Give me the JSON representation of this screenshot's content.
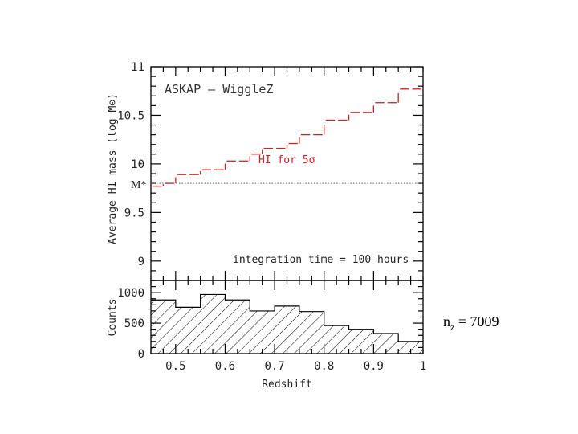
{
  "chart_data": [
    {
      "type": "line",
      "title": "ASKAP – WiggleZ",
      "xlabel": "",
      "ylabel": "Average HI mass  (log M⊙)",
      "xlim": [
        0.45,
        1.0
      ],
      "ylim": [
        8.8,
        11.0
      ],
      "yticks": [
        9,
        9.5,
        10,
        10.5,
        11
      ],
      "ytick_labels": [
        "9",
        "9.5",
        "10",
        "10.5",
        "11"
      ],
      "series": [
        {
          "name": "HI for 5σ",
          "style": "step-dashed",
          "color": "#cc2222",
          "bin_edges": [
            0.45,
            0.475,
            0.5,
            0.525,
            0.55,
            0.575,
            0.6,
            0.625,
            0.65,
            0.675,
            0.7,
            0.725,
            0.75,
            0.775,
            0.8,
            0.825,
            0.85,
            0.875,
            0.9,
            0.925,
            0.95,
            0.975,
            1.0
          ],
          "values": [
            9.77,
            9.8,
            9.89,
            9.89,
            9.94,
            9.94,
            10.03,
            10.03,
            10.1,
            10.16,
            10.16,
            10.21,
            10.3,
            10.3,
            10.45,
            10.45,
            10.53,
            10.53,
            10.63,
            10.63,
            10.77,
            10.77
          ]
        }
      ],
      "reference_line": {
        "label": "M*",
        "value": 9.8,
        "style": "dotted"
      },
      "annotation": "integration time = 100 hours"
    },
    {
      "type": "bar",
      "style": "hatched-histogram",
      "xlabel": "Redshift",
      "ylabel": "Counts",
      "xlim": [
        0.45,
        1.0
      ],
      "ylim": [
        0,
        1200
      ],
      "yticks": [
        0,
        500,
        1000
      ],
      "ytick_labels": [
        "0",
        "500",
        "1000"
      ],
      "xticks": [
        0.5,
        0.6,
        0.7,
        0.8,
        0.9,
        1.0
      ],
      "xtick_labels": [
        "0.5",
        "0.6",
        "0.7",
        "0.8",
        "0.9",
        "1"
      ],
      "bin_edges": [
        0.45,
        0.5,
        0.55,
        0.6,
        0.65,
        0.7,
        0.75,
        0.8,
        0.85,
        0.9,
        0.95,
        1.0
      ],
      "values": [
        880,
        760,
        970,
        880,
        700,
        780,
        690,
        460,
        400,
        330,
        200
      ]
    }
  ],
  "side_note": {
    "prefix": "n",
    "subscript": "z",
    "rest": " = 7009"
  }
}
